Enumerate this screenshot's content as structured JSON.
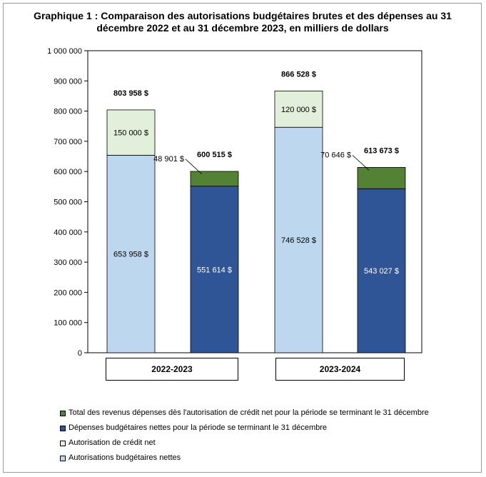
{
  "title_line1": "Graphique 1 : Comparaison des autorisations budgétaires brutes et des dépenses au 31",
  "title_line2": "décembre 2022 et au 31 décembre 2023, en milliers de dollars",
  "colors": {
    "autorisations": "#bdd7ee",
    "credit_net": "#e2efda",
    "depenses": "#2f5597",
    "revenus": "#548235"
  },
  "chart_data": {
    "type": "bar",
    "stacked": true,
    "title": "Graphique 1 : Comparaison des autorisations budgétaires brutes et des dépenses au 31 décembre 2022 et au 31 décembre 2023, en milliers de dollars",
    "ylim": [
      0,
      1000000
    ],
    "yticks": [
      0,
      100000,
      200000,
      300000,
      400000,
      500000,
      600000,
      700000,
      800000,
      900000,
      1000000
    ],
    "ytick_labels": [
      "0",
      "100 000",
      "200 000",
      "300 000",
      "400 000",
      "500 000",
      "600 000",
      "700 000",
      "800 000",
      "900 000",
      "1 000 000"
    ],
    "categories": [
      "2022-2023",
      "2023-2024"
    ],
    "bars": [
      {
        "category": "2022-2023",
        "total": 803958,
        "total_label": "803 958 $",
        "segments": [
          {
            "series": "autorisations",
            "value": 653958,
            "label": "653 958 $",
            "label_color": "#000000"
          },
          {
            "series": "credit_net",
            "value": 150000,
            "label": "150 000 $",
            "label_color": "#000000"
          }
        ]
      },
      {
        "category": "2022-2023",
        "total": 600515,
        "total_label": "600 515 $",
        "segments": [
          {
            "series": "depenses",
            "value": 551614,
            "label": "551 614 $",
            "label_color": "#ffffff"
          },
          {
            "series": "revenus",
            "value": 48901,
            "label": "48 901 $",
            "label_color": "#000000",
            "label_outside": true
          }
        ]
      },
      {
        "category": "2023-2024",
        "total": 866528,
        "total_label": "866 528 $",
        "segments": [
          {
            "series": "autorisations",
            "value": 746528,
            "label": "746 528 $",
            "label_color": "#000000"
          },
          {
            "series": "credit_net",
            "value": 120000,
            "label": "120 000 $",
            "label_color": "#000000"
          }
        ]
      },
      {
        "category": "2023-2024",
        "total": 613673,
        "total_label": "613 673 $",
        "segments": [
          {
            "series": "depenses",
            "value": 543027,
            "label": "543 027 $",
            "label_color": "#ffffff"
          },
          {
            "series": "revenus",
            "value": 70646,
            "label": "70 646 $",
            "label_color": "#000000",
            "label_outside": true
          }
        ]
      }
    ],
    "legend": [
      {
        "series": "revenus",
        "label": "Total des revenus dépenses dès l'autorisation de crédit net pour la période se terminant le 31 décembre"
      },
      {
        "series": "depenses",
        "label": "Dépenses budgétaires nettes pour la période se terminant le 31 décembre"
      },
      {
        "series": "credit_net",
        "label": "Autorisation de crédit net"
      },
      {
        "series": "autorisations",
        "label": "Autorisations budgétaires nettes"
      }
    ]
  }
}
